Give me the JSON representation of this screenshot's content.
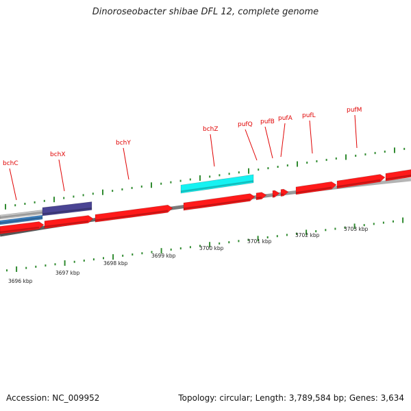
{
  "title": "Dinoroseobacter shibae DFL 12, complete genome",
  "footer": {
    "accession": "Accession: NC_009952",
    "topology": "Topology: circular; Length: 3,789,584 bp; Genes: 3,634"
  },
  "colors": {
    "gene_label": "#e00000",
    "forward_gene": "#ff1a1a",
    "cyan_gene": "#16f2f2",
    "navy_gene": "#4a4493",
    "blue_gene": "#3c80c0",
    "gray_gene": "#c4c4c4",
    "backbone": "#808080",
    "tick": "#2f8a2f"
  },
  "gene_labels": [
    "bchC",
    "bchX",
    "bchY",
    "bchZ",
    "pufQ",
    "pufB",
    "pufA",
    "pufL",
    "pufM"
  ],
  "kbp_labels": [
    "3696 kbp",
    "3697 kbp",
    "3698 kbp",
    "3699 kbp",
    "3700 kbp",
    "3701 kbp",
    "3702 kbp",
    "3703 kbp"
  ]
}
